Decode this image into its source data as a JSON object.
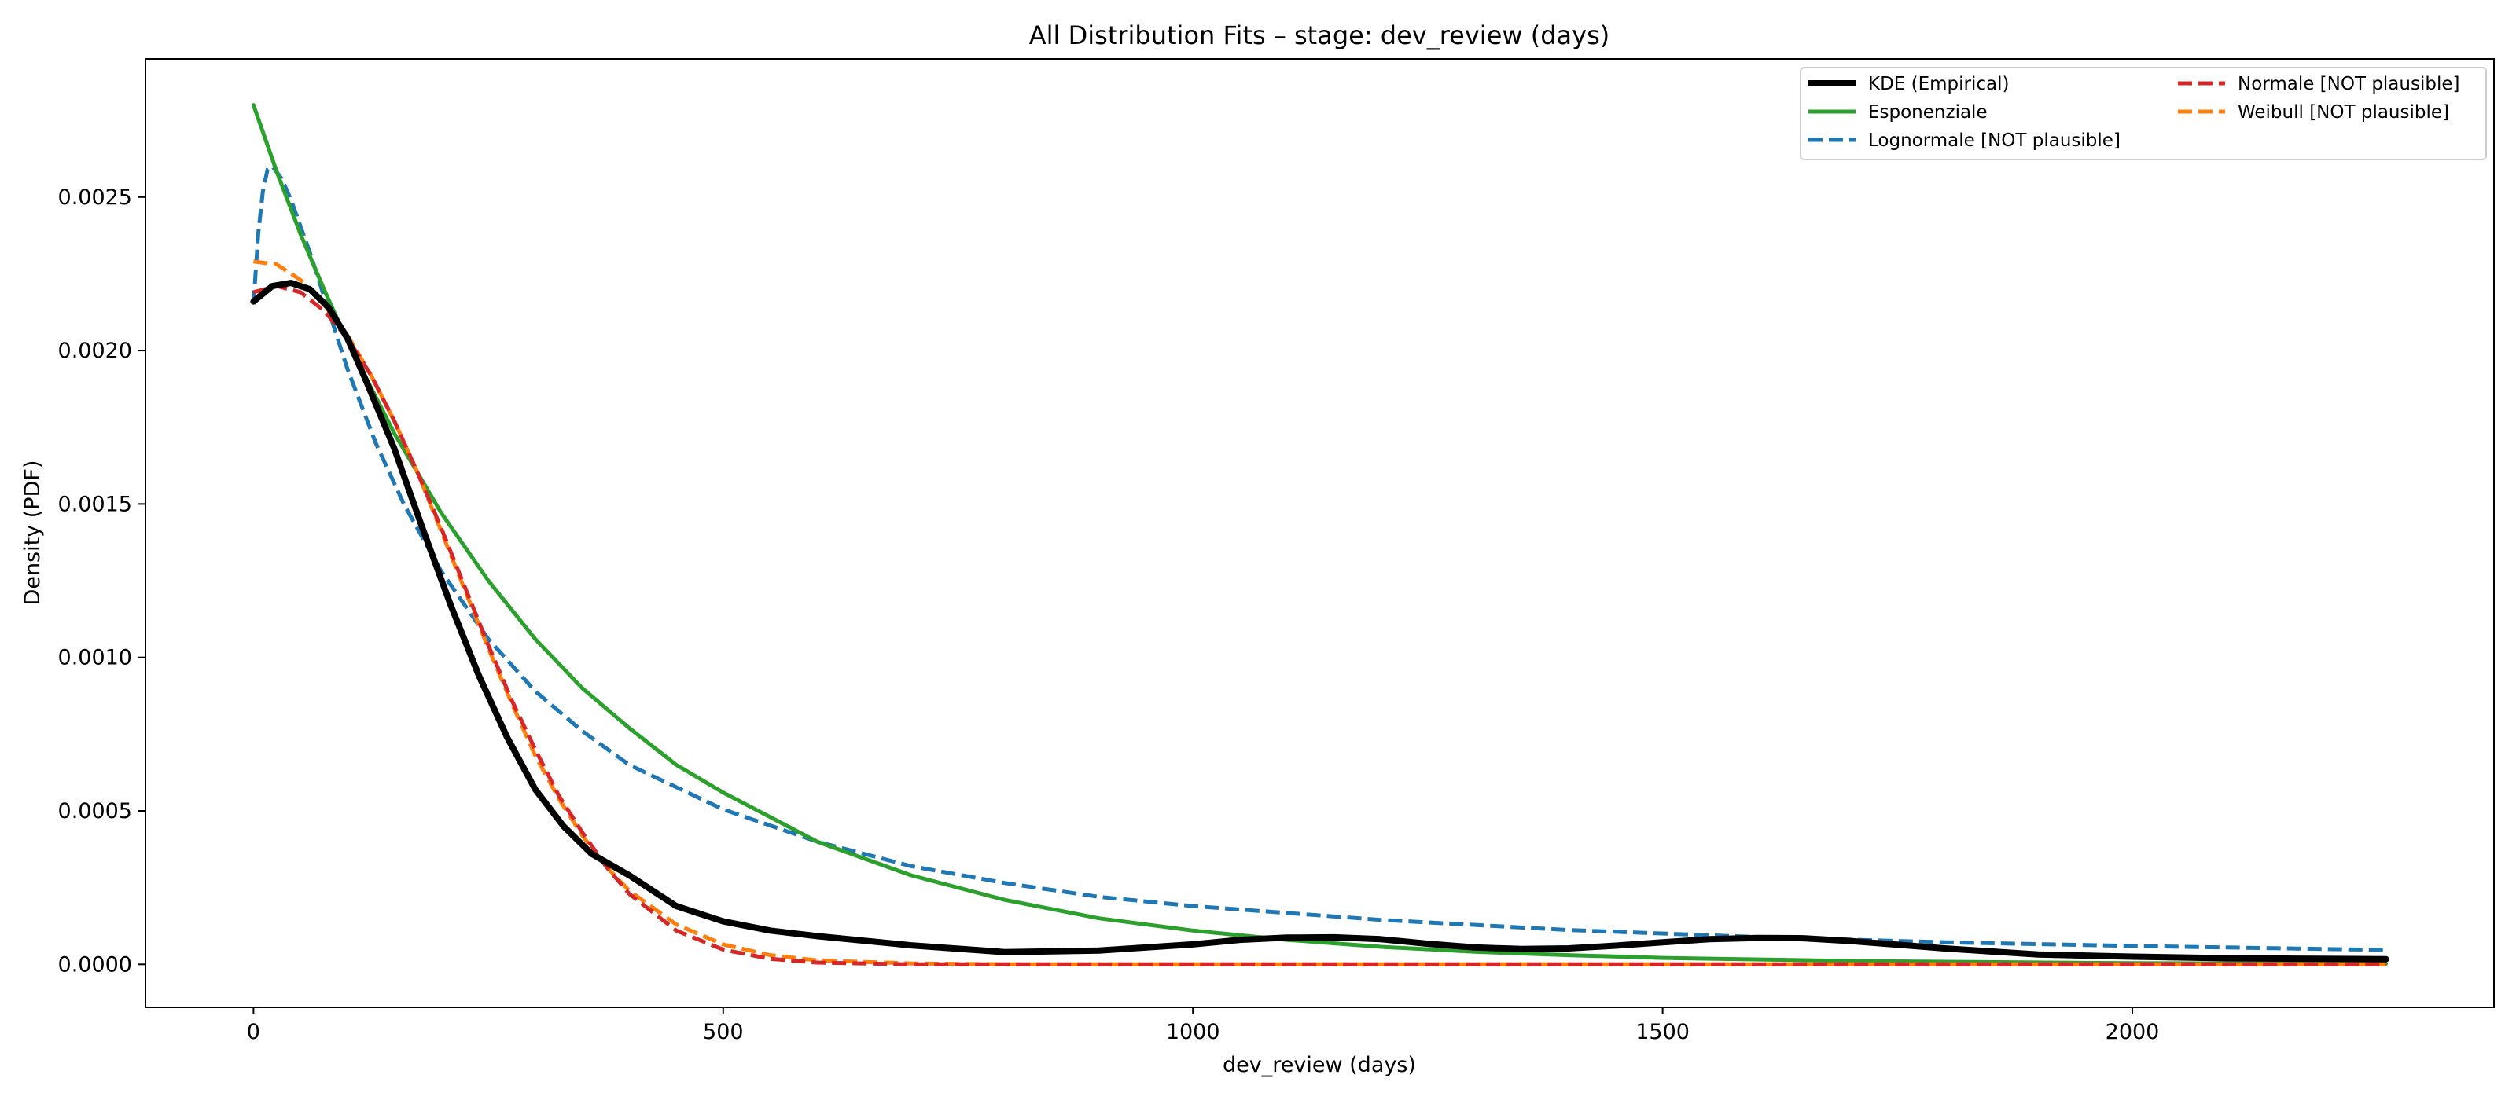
{
  "chart_data": {
    "type": "line",
    "title": "All Distribution Fits – stage: dev_review (days)",
    "xlabel": "dev_review (days)",
    "ylabel": "Density (PDF)",
    "xlim": [
      -115,
      2385
    ],
    "ylim": [
      -0.00014,
      0.00295
    ],
    "x_ticks": [
      0,
      500,
      1000,
      1500,
      2000
    ],
    "y_ticks": [
      0.0,
      0.0005,
      0.001,
      0.0015,
      0.002,
      0.0025
    ],
    "x_tick_labels": [
      "0",
      "500",
      "1000",
      "1500",
      "2000"
    ],
    "y_tick_labels": [
      "0.0000",
      "0.0005",
      "0.0010",
      "0.0015",
      "0.0020",
      "0.0025"
    ],
    "grid": false,
    "legend_position": "top-right",
    "legend_columns": 2,
    "series": [
      {
        "name": "KDE (Empirical)",
        "color": "#000000",
        "style": "solid-thick",
        "points": [
          [
            0,
            0.00216
          ],
          [
            20,
            0.00221
          ],
          [
            40,
            0.00222
          ],
          [
            60,
            0.0022
          ],
          [
            80,
            0.00214
          ],
          [
            100,
            0.00204
          ],
          [
            120,
            0.0019
          ],
          [
            150,
            0.00168
          ],
          [
            180,
            0.00142
          ],
          [
            210,
            0.00117
          ],
          [
            240,
            0.00094
          ],
          [
            270,
            0.00074
          ],
          [
            300,
            0.00057
          ],
          [
            330,
            0.00045
          ],
          [
            360,
            0.00036
          ],
          [
            400,
            0.00029
          ],
          [
            450,
            0.00019
          ],
          [
            500,
            0.00014
          ],
          [
            550,
            0.00011
          ],
          [
            600,
            9.2e-05
          ],
          [
            700,
            6.2e-05
          ],
          [
            800,
            4e-05
          ],
          [
            900,
            4.5e-05
          ],
          [
            1000,
            6.5e-05
          ],
          [
            1050,
            8e-05
          ],
          [
            1100,
            8.7e-05
          ],
          [
            1150,
            8.8e-05
          ],
          [
            1200,
            8.2e-05
          ],
          [
            1250,
            6.7e-05
          ],
          [
            1300,
            5.5e-05
          ],
          [
            1350,
            5e-05
          ],
          [
            1400,
            5.2e-05
          ],
          [
            1450,
            6.1e-05
          ],
          [
            1500,
            7.2e-05
          ],
          [
            1550,
            8.2e-05
          ],
          [
            1600,
            8.6e-05
          ],
          [
            1650,
            8.5e-05
          ],
          [
            1700,
            7.6e-05
          ],
          [
            1800,
            5.2e-05
          ],
          [
            1900,
            3.2e-05
          ],
          [
            2000,
            2.5e-05
          ],
          [
            2100,
            2e-05
          ],
          [
            2200,
            1.8e-05
          ],
          [
            2270,
            1.7e-05
          ]
        ]
      },
      {
        "name": "Lognormale [NOT plausible]",
        "color": "#1f77b4",
        "style": "dashed",
        "points": [
          [
            0,
            0.00215
          ],
          [
            5,
            0.00238
          ],
          [
            10,
            0.00252
          ],
          [
            15,
            0.00259
          ],
          [
            20,
            0.0026
          ],
          [
            30,
            0.00256
          ],
          [
            40,
            0.00249
          ],
          [
            60,
            0.00232
          ],
          [
            80,
            0.00213
          ],
          [
            100,
            0.00194
          ],
          [
            130,
            0.0017
          ],
          [
            160,
            0.0015
          ],
          [
            200,
            0.00128
          ],
          [
            250,
            0.00106
          ],
          [
            300,
            0.00089
          ],
          [
            350,
            0.00076
          ],
          [
            400,
            0.00065
          ],
          [
            500,
            0.000505
          ],
          [
            600,
            0.0004
          ],
          [
            700,
            0.00032
          ],
          [
            800,
            0.000265
          ],
          [
            900,
            0.00022
          ],
          [
            1000,
            0.00019
          ],
          [
            1200,
            0.000145
          ],
          [
            1400,
            0.000112
          ],
          [
            1600,
            8.9e-05
          ],
          [
            1800,
            7.2e-05
          ],
          [
            2000,
            6e-05
          ],
          [
            2270,
            4.7e-05
          ]
        ]
      },
      {
        "name": "Weibull [NOT plausible]",
        "color": "#ff7f0e",
        "style": "dashed",
        "points": [
          [
            0,
            0.00229
          ],
          [
            25,
            0.00228
          ],
          [
            50,
            0.00223
          ],
          [
            75,
            0.00215
          ],
          [
            100,
            0.00205
          ],
          [
            125,
            0.00192
          ],
          [
            150,
            0.00177
          ],
          [
            175,
            0.0016
          ],
          [
            200,
            0.00141
          ],
          [
            225,
            0.00122
          ],
          [
            250,
            0.00103
          ],
          [
            275,
            0.00085
          ],
          [
            300,
            0.00068
          ],
          [
            325,
            0.00054
          ],
          [
            350,
            0.00042
          ],
          [
            375,
            0.00032
          ],
          [
            400,
            0.00024
          ],
          [
            450,
            0.00013
          ],
          [
            500,
            6.5e-05
          ],
          [
            550,
            3e-05
          ],
          [
            600,
            1.3e-05
          ],
          [
            700,
            3e-06
          ],
          [
            800,
            0.0
          ],
          [
            1000,
            0.0
          ],
          [
            2270,
            0.0
          ]
        ]
      },
      {
        "name": "Esponenziale",
        "color": "#2ca02c",
        "style": "solid",
        "points": [
          [
            0,
            0.0028
          ],
          [
            25,
            0.00258
          ],
          [
            50,
            0.00238
          ],
          [
            75,
            0.0022
          ],
          [
            100,
            0.00203
          ],
          [
            150,
            0.00173
          ],
          [
            200,
            0.00147
          ],
          [
            250,
            0.00125
          ],
          [
            300,
            0.00106
          ],
          [
            350,
            0.0009
          ],
          [
            400,
            0.00077
          ],
          [
            450,
            0.00065
          ],
          [
            500,
            0.00056
          ],
          [
            600,
            0.0004
          ],
          [
            700,
            0.00029
          ],
          [
            800,
            0.00021
          ],
          [
            900,
            0.00015
          ],
          [
            1000,
            0.00011
          ],
          [
            1100,
            8e-05
          ],
          [
            1200,
            5.7e-05
          ],
          [
            1300,
            4.1e-05
          ],
          [
            1400,
            3e-05
          ],
          [
            1500,
            2.1e-05
          ],
          [
            1700,
            1.1e-05
          ],
          [
            2000,
            4e-06
          ],
          [
            2270,
            2e-06
          ]
        ]
      },
      {
        "name": "Normale [NOT plausible]",
        "color": "#d62728",
        "style": "dashed",
        "points": [
          [
            0,
            0.00219
          ],
          [
            25,
            0.00221
          ],
          [
            50,
            0.00219
          ],
          [
            75,
            0.00213
          ],
          [
            100,
            0.00204
          ],
          [
            125,
            0.00192
          ],
          [
            150,
            0.00177
          ],
          [
            175,
            0.0016
          ],
          [
            200,
            0.00142
          ],
          [
            225,
            0.00123
          ],
          [
            250,
            0.00104
          ],
          [
            275,
            0.00086
          ],
          [
            300,
            0.0007
          ],
          [
            325,
            0.00055
          ],
          [
            350,
            0.00043
          ],
          [
            375,
            0.00032
          ],
          [
            400,
            0.00023
          ],
          [
            450,
            0.00011
          ],
          [
            500,
            4.8e-05
          ],
          [
            550,
            1.8e-05
          ],
          [
            600,
            6e-06
          ],
          [
            700,
            0.0
          ],
          [
            1000,
            0.0
          ],
          [
            2270,
            0.0
          ]
        ]
      }
    ],
    "legend_order": [
      0,
      3,
      1,
      4,
      2
    ]
  }
}
